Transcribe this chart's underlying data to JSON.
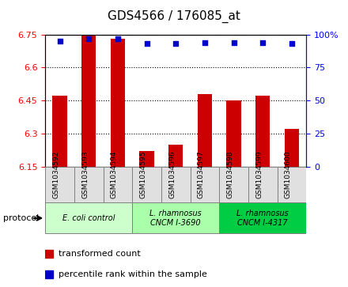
{
  "title": "GDS4566 / 176085_at",
  "samples": [
    "GSM1034592",
    "GSM1034593",
    "GSM1034594",
    "GSM1034595",
    "GSM1034596",
    "GSM1034597",
    "GSM1034598",
    "GSM1034599",
    "GSM1034600"
  ],
  "transformed_counts": [
    6.47,
    6.75,
    6.73,
    6.22,
    6.25,
    6.48,
    6.45,
    6.47,
    6.32
  ],
  "percentile_ranks": [
    95,
    97,
    97,
    93,
    93,
    94,
    94,
    94,
    93
  ],
  "ylim_left": [
    6.15,
    6.75
  ],
  "ylim_right": [
    0,
    100
  ],
  "yticks_left": [
    6.15,
    6.3,
    6.45,
    6.6,
    6.75
  ],
  "yticks_right": [
    0,
    25,
    50,
    75,
    100
  ],
  "bar_color": "#CC0000",
  "dot_color": "#0000CC",
  "bg_color": "#ffffff",
  "grid_color": "#000000",
  "protocols": [
    {
      "label": "E. coli control",
      "start": 0,
      "end": 3,
      "color": "#ccffcc"
    },
    {
      "label": "L. rhamnosus\nCNCM I-3690",
      "start": 3,
      "end": 6,
      "color": "#aaffaa"
    },
    {
      "label": "L. rhamnosus\nCNCM I-4317",
      "start": 6,
      "end": 9,
      "color": "#00cc44"
    }
  ],
  "legend_items": [
    {
      "color": "#CC0000",
      "label": "transformed count"
    },
    {
      "color": "#0000CC",
      "label": "percentile rank within the sample"
    }
  ],
  "title_fontsize": 11,
  "axis_fontsize": 9,
  "tick_fontsize": 8
}
